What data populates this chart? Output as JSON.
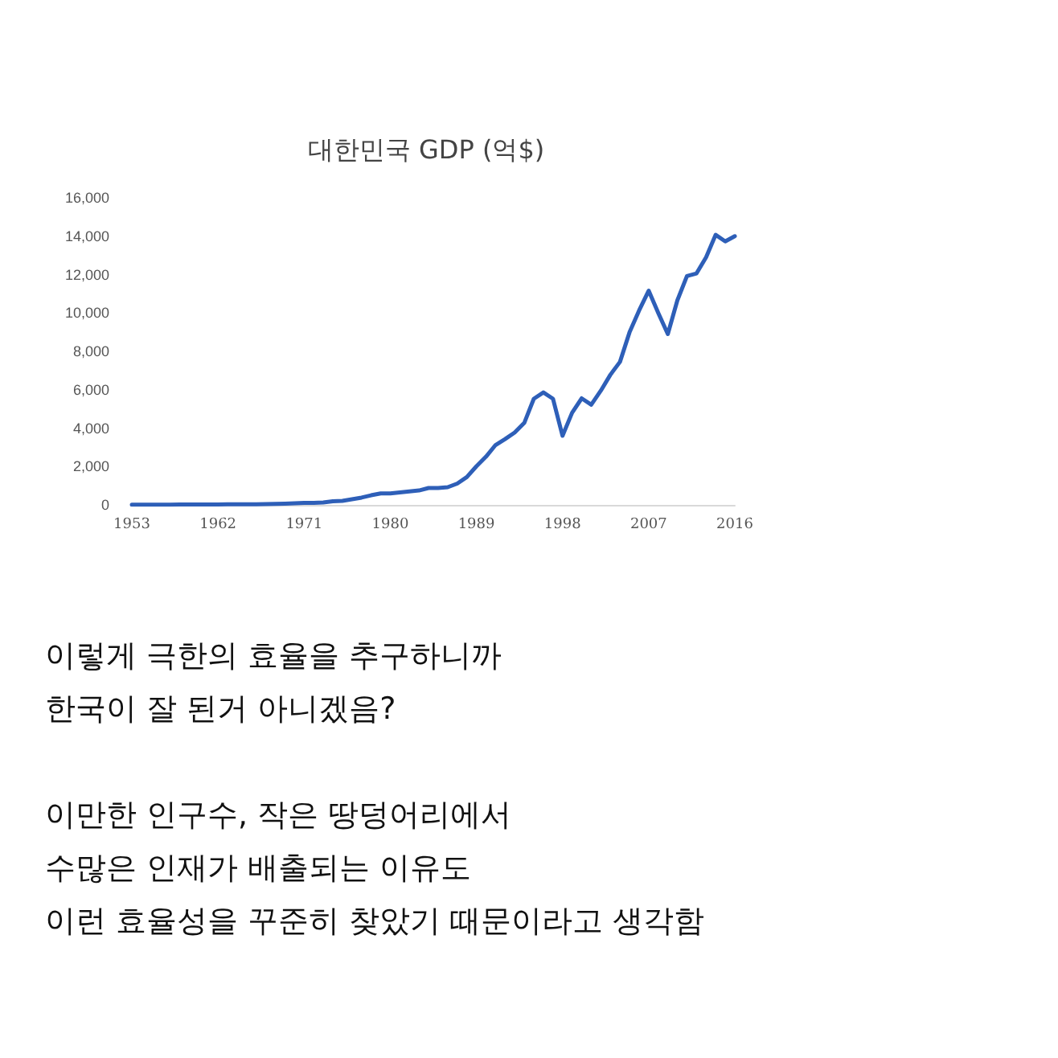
{
  "chart_data": {
    "type": "line",
    "title": "대한민국 GDP (억$)",
    "categories": [
      "1953",
      null,
      null,
      null,
      null,
      null,
      null,
      null,
      null,
      "1962",
      null,
      null,
      null,
      null,
      null,
      null,
      null,
      null,
      "1971",
      null,
      null,
      null,
      null,
      null,
      null,
      null,
      null,
      "1980",
      null,
      null,
      null,
      null,
      null,
      null,
      null,
      null,
      "1989",
      null,
      null,
      null,
      null,
      null,
      null,
      null,
      null,
      "1998",
      null,
      null,
      null,
      null,
      null,
      null,
      null,
      null,
      "2007",
      null,
      null,
      null,
      null,
      null,
      null,
      null,
      null,
      "2016"
    ],
    "series": [
      {
        "color": "#2e5fb8",
        "values": [
          15,
          15,
          15,
          15,
          15,
          20,
          20,
          20,
          25,
          25,
          30,
          30,
          30,
          35,
          45,
          55,
          65,
          80,
          100,
          100,
          130,
          190,
          210,
          290,
          380,
          500,
          600,
          600,
          650,
          700,
          750,
          880,
          880,
          920,
          1110,
          1450,
          2010,
          2510,
          3120,
          3430,
          3770,
          4270,
          5530,
          5860,
          5530,
          3600,
          4800,
          5550,
          5220,
          5950,
          6780,
          7450,
          8990,
          10130,
          11160,
          10000,
          8900,
          10660,
          11920,
          12060,
          12900,
          14070,
          13730,
          14000
        ]
      }
    ],
    "ylim": [
      0,
      16000
    ],
    "yticks": [
      {
        "value": 0,
        "label": "0"
      },
      {
        "value": 2000,
        "label": "2,000"
      },
      {
        "value": 4000,
        "label": "4,000"
      },
      {
        "value": 6000,
        "label": "6,000"
      },
      {
        "value": 8000,
        "label": "8,000"
      },
      {
        "value": 10000,
        "label": "10,000"
      },
      {
        "value": 12000,
        "label": "12,000"
      },
      {
        "value": 14000,
        "label": "14,000"
      },
      {
        "value": 16000,
        "label": "16,000"
      }
    ],
    "grid": false,
    "marker": "none",
    "line_style": "solid",
    "annotations": [
      "이렇게 극한의 효율을 추구하니까",
      "한국이 잘 된거 아니겠음?",
      "이만한 인구수, 작은 땅덩어리에서",
      "수많은 인재가 배출되는 이유도",
      "이런 효율성을 꾸준히 찾았기 때문이라고 생각함"
    ]
  }
}
